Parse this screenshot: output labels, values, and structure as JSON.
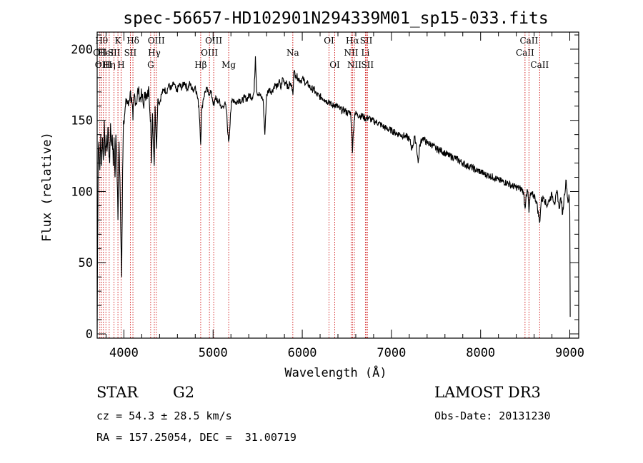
{
  "chart_data": {
    "type": "line",
    "title": "spec-56657-HD102901N294339M01_sp15-033.fits",
    "xlabel": "Wavelength (Å)",
    "ylabel": "Flux (relative)",
    "xlim": [
      3700,
      9100
    ],
    "ylim": [
      -3,
      212
    ],
    "xticks": [
      4000,
      5000,
      6000,
      7000,
      8000,
      9000
    ],
    "yticks": [
      0,
      50,
      100,
      150,
      200
    ],
    "series": [
      {
        "name": "spectrum",
        "points": [
          [
            3700,
            2
          ],
          [
            3705,
            62
          ],
          [
            3712,
            128
          ],
          [
            3720,
            135
          ],
          [
            3730,
            115
          ],
          [
            3740,
            140
          ],
          [
            3750,
            118
          ],
          [
            3760,
            138
          ],
          [
            3770,
            122
          ],
          [
            3780,
            150
          ],
          [
            3790,
            125
          ],
          [
            3800,
            140
          ],
          [
            3810,
            128
          ],
          [
            3820,
            145
          ],
          [
            3830,
            132
          ],
          [
            3840,
            120
          ],
          [
            3850,
            148
          ],
          [
            3860,
            132
          ],
          [
            3870,
            140
          ],
          [
            3880,
            118
          ],
          [
            3890,
            138
          ],
          [
            3900,
            110
          ],
          [
            3910,
            140
          ],
          [
            3920,
            128
          ],
          [
            3933,
            80
          ],
          [
            3945,
            135
          ],
          [
            3955,
            110
          ],
          [
            3968,
            60
          ],
          [
            3975,
            40
          ],
          [
            3985,
            115
          ],
          [
            3995,
            150
          ],
          [
            4010,
            155
          ],
          [
            4030,
            165
          ],
          [
            4050,
            160
          ],
          [
            4070,
            170
          ],
          [
            4090,
            162
          ],
          [
            4101,
            150
          ],
          [
            4115,
            168
          ],
          [
            4140,
            162
          ],
          [
            4160,
            172
          ],
          [
            4180,
            165
          ],
          [
            4200,
            168
          ],
          [
            4220,
            160
          ],
          [
            4240,
            170
          ],
          [
            4260,
            165
          ],
          [
            4280,
            172
          ],
          [
            4300,
            150
          ],
          [
            4310,
            120
          ],
          [
            4320,
            155
          ],
          [
            4340,
            118
          ],
          [
            4350,
            160
          ],
          [
            4365,
            130
          ],
          [
            4380,
            165
          ],
          [
            4400,
            162
          ],
          [
            4420,
            168
          ],
          [
            4450,
            172
          ],
          [
            4480,
            170
          ],
          [
            4500,
            175
          ],
          [
            4530,
            172
          ],
          [
            4560,
            176
          ],
          [
            4590,
            170
          ],
          [
            4620,
            175
          ],
          [
            4650,
            173
          ],
          [
            4680,
            177
          ],
          [
            4710,
            172
          ],
          [
            4740,
            176
          ],
          [
            4770,
            171
          ],
          [
            4800,
            174
          ],
          [
            4820,
            168
          ],
          [
            4840,
            160
          ],
          [
            4850,
            150
          ],
          [
            4861,
            133
          ],
          [
            4870,
            155
          ],
          [
            4890,
            165
          ],
          [
            4910,
            170
          ],
          [
            4930,
            172
          ],
          [
            4950,
            168
          ],
          [
            4970,
            171
          ],
          [
            4990,
            166
          ],
          [
            5010,
            160
          ],
          [
            5030,
            167
          ],
          [
            5050,
            162
          ],
          [
            5070,
            165
          ],
          [
            5090,
            158
          ],
          [
            5110,
            160
          ],
          [
            5130,
            162
          ],
          [
            5150,
            157
          ],
          [
            5167,
            140
          ],
          [
            5173,
            135
          ],
          [
            5183,
            140
          ],
          [
            5195,
            155
          ],
          [
            5210,
            163
          ],
          [
            5230,
            165
          ],
          [
            5260,
            162
          ],
          [
            5290,
            165
          ],
          [
            5320,
            163
          ],
          [
            5350,
            166
          ],
          [
            5380,
            165
          ],
          [
            5410,
            168
          ],
          [
            5440,
            166
          ],
          [
            5460,
            170
          ],
          [
            5475,
            195
          ],
          [
            5490,
            170
          ],
          [
            5520,
            168
          ],
          [
            5540,
            166
          ],
          [
            5560,
            165
          ],
          [
            5580,
            140
          ],
          [
            5600,
            168
          ],
          [
            5630,
            172
          ],
          [
            5660,
            170
          ],
          [
            5690,
            175
          ],
          [
            5720,
            173
          ],
          [
            5740,
            178
          ],
          [
            5760,
            172
          ],
          [
            5780,
            180
          ],
          [
            5800,
            176
          ],
          [
            5820,
            178
          ],
          [
            5840,
            172
          ],
          [
            5860,
            176
          ],
          [
            5880,
            174
          ],
          [
            5890,
            172
          ],
          [
            5895,
            168
          ],
          [
            5905,
            184
          ],
          [
            5925,
            182
          ],
          [
            5950,
            180
          ],
          [
            5980,
            178
          ],
          [
            6010,
            179
          ],
          [
            6040,
            176
          ],
          [
            6070,
            175
          ],
          [
            6100,
            172
          ],
          [
            6130,
            172
          ],
          [
            6160,
            168
          ],
          [
            6190,
            167
          ],
          [
            6220,
            166
          ],
          [
            6250,
            165
          ],
          [
            6280,
            163
          ],
          [
            6300,
            164
          ],
          [
            6330,
            160
          ],
          [
            6360,
            161
          ],
          [
            6390,
            160
          ],
          [
            6420,
            158
          ],
          [
            6450,
            157
          ],
          [
            6480,
            157
          ],
          [
            6510,
            155
          ],
          [
            6540,
            156
          ],
          [
            6555,
            145
          ],
          [
            6563,
            127
          ],
          [
            6572,
            142
          ],
          [
            6590,
            155
          ],
          [
            6620,
            154
          ],
          [
            6650,
            153
          ],
          [
            6680,
            153
          ],
          [
            6710,
            151
          ],
          [
            6740,
            152
          ],
          [
            6780,
            150
          ],
          [
            6820,
            149
          ],
          [
            6860,
            148
          ],
          [
            6900,
            146
          ],
          [
            6950,
            144
          ],
          [
            7000,
            143
          ],
          [
            7050,
            141
          ],
          [
            7100,
            140
          ],
          [
            7150,
            139
          ],
          [
            7200,
            137
          ],
          [
            7230,
            130
          ],
          [
            7260,
            138
          ],
          [
            7280,
            133
          ],
          [
            7300,
            120
          ],
          [
            7320,
            133
          ],
          [
            7350,
            138
          ],
          [
            7400,
            134
          ],
          [
            7450,
            133
          ],
          [
            7500,
            130
          ],
          [
            7550,
            129
          ],
          [
            7600,
            127
          ],
          [
            7650,
            125
          ],
          [
            7700,
            124
          ],
          [
            7750,
            122
          ],
          [
            7800,
            120
          ],
          [
            7850,
            118
          ],
          [
            7900,
            117
          ],
          [
            7950,
            115
          ],
          [
            8000,
            114
          ],
          [
            8050,
            112
          ],
          [
            8100,
            111
          ],
          [
            8150,
            110
          ],
          [
            8200,
            108
          ],
          [
            8250,
            107
          ],
          [
            8300,
            106
          ],
          [
            8350,
            104
          ],
          [
            8400,
            103
          ],
          [
            8450,
            102
          ],
          [
            8480,
            100
          ],
          [
            8498,
            88
          ],
          [
            8510,
            98
          ],
          [
            8530,
            100
          ],
          [
            8542,
            85
          ],
          [
            8555,
            97
          ],
          [
            8580,
            98
          ],
          [
            8610,
            96
          ],
          [
            8630,
            92
          ],
          [
            8662,
            78
          ],
          [
            8680,
            94
          ],
          [
            8710,
            96
          ],
          [
            8740,
            90
          ],
          [
            8770,
            94
          ],
          [
            8800,
            98
          ],
          [
            8830,
            92
          ],
          [
            8860,
            100
          ],
          [
            8880,
            88
          ],
          [
            8900,
            96
          ],
          [
            8920,
            84
          ],
          [
            8940,
            98
          ],
          [
            8960,
            108
          ],
          [
            8980,
            92
          ],
          [
            8990,
            98
          ],
          [
            9000,
            86
          ],
          [
            9005,
            12
          ]
        ]
      }
    ],
    "line_markers": [
      {
        "wl": 3730,
        "label": "OII",
        "row": 2
      },
      {
        "wl": 3750,
        "label": "Hθ",
        "row": 1
      },
      {
        "wl": 3770,
        "label": "OIII",
        "row": 3
      },
      {
        "wl": 3798,
        "label": "HeI",
        "row": 2
      },
      {
        "wl": 3835,
        "label": "Hη",
        "row": 3
      },
      {
        "wl": 3889,
        "label": "SII",
        "row": 2
      },
      {
        "wl": 3933,
        "label": "K",
        "row": 1
      },
      {
        "wl": 3968,
        "label": "H",
        "row": 3
      },
      {
        "wl": 4101,
        "label": "Hδ",
        "row": 1
      },
      {
        "wl": 4072,
        "label": "SII",
        "row": 2
      },
      {
        "wl": 4300,
        "label": "G",
        "row": 3
      },
      {
        "wl": 4341,
        "label": "Hγ",
        "row": 2
      },
      {
        "wl": 4363,
        "label": "OIII",
        "row": 1
      },
      {
        "wl": 4861,
        "label": "Hβ",
        "row": 3
      },
      {
        "wl": 4959,
        "label": "OIII",
        "row": 2
      },
      {
        "wl": 5007,
        "label": "OIII",
        "row": 1
      },
      {
        "wl": 5175,
        "label": "Mg",
        "row": 3
      },
      {
        "wl": 5894,
        "label": "Na",
        "row": 2
      },
      {
        "wl": 6300,
        "label": "OI",
        "row": 1
      },
      {
        "wl": 6364,
        "label": "OI",
        "row": 3
      },
      {
        "wl": 6548,
        "label": "NII",
        "row": 2
      },
      {
        "wl": 6563,
        "label": "Hα",
        "row": 1
      },
      {
        "wl": 6584,
        "label": "NII",
        "row": 3
      },
      {
        "wl": 6708,
        "label": "Li",
        "row": 2
      },
      {
        "wl": 6717,
        "label": "SII",
        "row": 1
      },
      {
        "wl": 6731,
        "label": "SII",
        "row": 3
      },
      {
        "wl": 8498,
        "label": "CaII",
        "row": 2
      },
      {
        "wl": 8542,
        "label": "CaII",
        "row": 1
      },
      {
        "wl": 8662,
        "label": "CaII",
        "row": 3
      }
    ]
  },
  "info": {
    "object_class": "STAR",
    "subclass": "G2",
    "survey": "LAMOST DR3",
    "redshift_line": "cz = 54.3 ± 28.5 km/s",
    "obs_date_line": "Obs-Date: 20131230",
    "coords_line": "RA = 157.25054, DEC =  31.00719"
  },
  "colors": {
    "line_marker": "#cc0000",
    "spectrum": "#000000",
    "axis": "#000000"
  }
}
